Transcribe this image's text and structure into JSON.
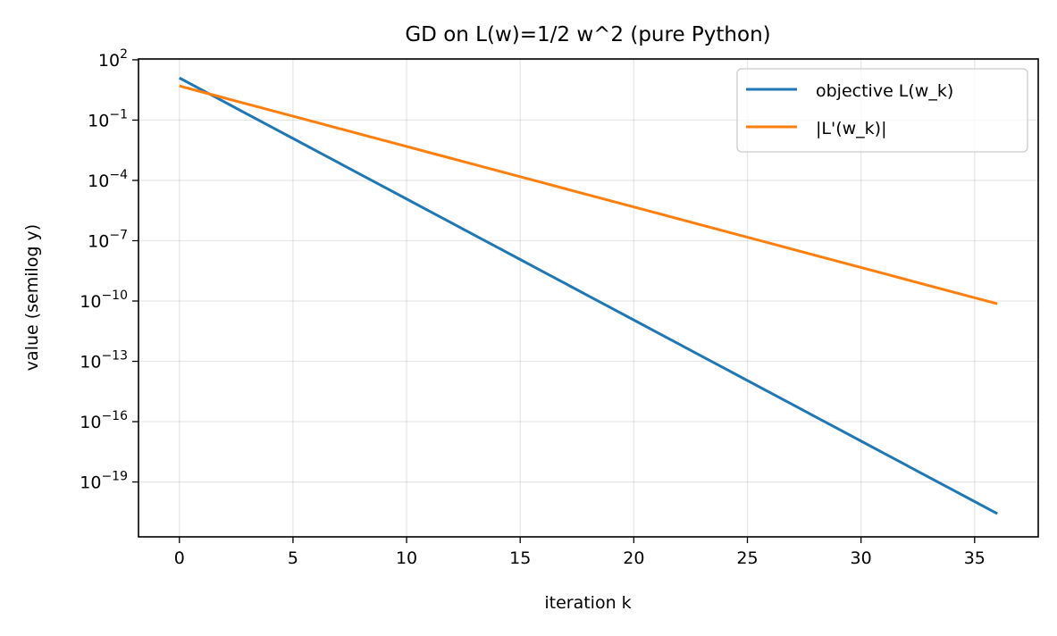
{
  "chart_data": {
    "type": "line",
    "title": "GD on L(w)=1/2 w^2 (pure Python)",
    "xlabel": "iteration k",
    "ylabel": "value (semilog y)",
    "yscale": "log",
    "xlim": [
      -1.8,
      37.8
    ],
    "ylim": [
      1.86e-22,
      110
    ],
    "grid": true,
    "legend_position": "top-right",
    "xticks": [
      0,
      5,
      10,
      15,
      20,
      25,
      30,
      35
    ],
    "xticklabels": [
      "0",
      "5",
      "10",
      "15",
      "20",
      "25",
      "30",
      "35"
    ],
    "yticks": [
      100.0,
      0.1,
      0.0001,
      1e-07,
      1e-10,
      1e-13,
      1e-16,
      1e-19
    ],
    "yticklabels": [
      "10^2",
      "10^-1",
      "10^-4",
      "10^-7",
      "10^-10",
      "10^-13",
      "10^-16",
      "10^-19"
    ],
    "x": [
      0,
      1,
      2,
      3,
      4,
      5,
      6,
      7,
      8,
      9,
      10,
      11,
      12,
      13,
      14,
      15,
      16,
      17,
      18,
      19,
      20,
      21,
      22,
      23,
      24,
      25,
      26,
      27,
      28,
      29,
      30,
      31,
      32,
      33,
      34,
      35,
      36
    ],
    "series": [
      {
        "name": "objective L(w_k)",
        "color": "#1f77b4",
        "values": [
          12.5,
          3.125,
          0.78125,
          0.1953,
          0.04883,
          0.01221,
          0.003052,
          0.0007629,
          0.0001907,
          4.768e-05,
          1.192e-05,
          2.98e-06,
          7.451e-07,
          1.863e-07,
          4.657e-08,
          1.164e-08,
          2.91e-09,
          7.276e-10,
          1.819e-10,
          4.547e-11,
          1.137e-11,
          2.842e-12,
          7.105e-13,
          1.776e-13,
          4.441e-14,
          1.11e-14,
          2.776e-15,
          6.939e-16,
          1.735e-16,
          4.337e-17,
          1.084e-17,
          2.711e-18,
          6.776e-19,
          1.694e-19,
          4.235e-20,
          1.059e-20,
          2.647e-21
        ]
      },
      {
        "name": "|L'(w_k)|",
        "color": "#ff7f0e",
        "values": [
          5,
          2.5,
          1.25,
          0.625,
          0.3125,
          0.15625,
          0.078125,
          0.0390625,
          0.01953,
          0.009766,
          0.004883,
          0.002441,
          0.001221,
          0.0006104,
          0.0003052,
          0.0001526,
          7.629e-05,
          3.815e-05,
          1.907e-05,
          9.537e-06,
          4.768e-06,
          2.384e-06,
          1.192e-06,
          5.96e-07,
          2.98e-07,
          1.49e-07,
          7.451e-08,
          3.725e-08,
          1.863e-08,
          9.313e-09,
          4.657e-09,
          2.328e-09,
          1.164e-09,
          5.821e-10,
          2.91e-10,
          1.455e-10,
          7.276e-11
        ]
      }
    ]
  }
}
